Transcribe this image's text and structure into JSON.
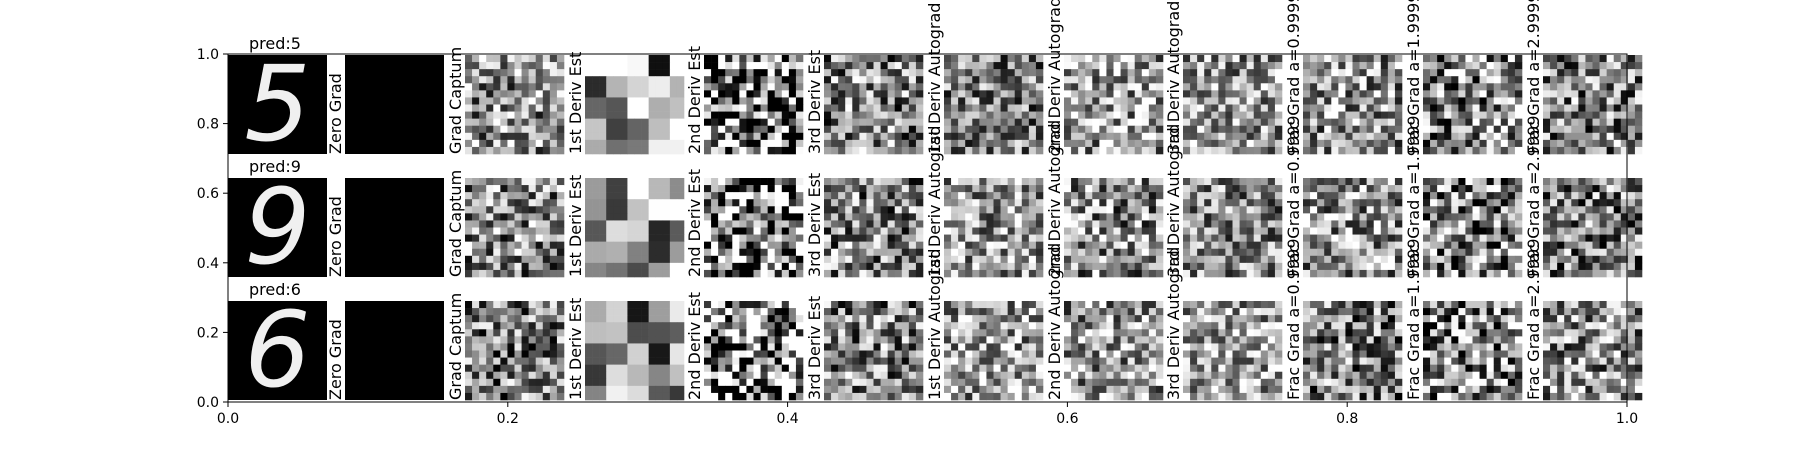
{
  "chart_data": {
    "type": "image-grid",
    "rows": [
      {
        "title": "pred:5",
        "digit": "5"
      },
      {
        "title": "pred:9",
        "digit": "9"
      },
      {
        "title": "pred:6",
        "digit": "6"
      }
    ],
    "columns": [
      {
        "label": "Zero Grad",
        "kind": "black"
      },
      {
        "label": "Grad Captum",
        "kind": "noise"
      },
      {
        "label": "1st Deriv Est",
        "kind": "noise"
      },
      {
        "label": "2nd Deriv Est",
        "kind": "noise"
      },
      {
        "label": "3rd Deriv Est",
        "kind": "noise"
      },
      {
        "label": "1st Deriv Autograd",
        "kind": "noise"
      },
      {
        "label": "2nd Deriv Autograd",
        "kind": "noise"
      },
      {
        "label": "3rd Deriv Autograd",
        "kind": "noise"
      },
      {
        "label": "Frac Grad a=0.9999",
        "kind": "noise"
      },
      {
        "label": "Frac Grad a=1.9999",
        "kind": "noise"
      },
      {
        "label": "Frac Grad a=2.9999",
        "kind": "noise"
      }
    ],
    "column_style": [
      {
        "block": 1,
        "contrast": 0.5
      },
      {
        "block": 1,
        "contrast": 0.5
      },
      {
        "block": 3,
        "contrast": 0.5
      },
      {
        "block": 1,
        "contrast": 0.9
      },
      {
        "block": 1,
        "contrast": 0.5
      },
      {
        "block": 1,
        "contrast": 0.45
      },
      {
        "block": 1,
        "contrast": 0.5
      },
      {
        "block": 1,
        "contrast": 0.45
      },
      {
        "block": 1,
        "contrast": 0.5
      },
      {
        "block": 1,
        "contrast": 0.6
      },
      {
        "block": 1,
        "contrast": 0.5
      }
    ],
    "x_axis": {
      "lim": [
        0.0,
        1.0
      ],
      "ticks": [
        0.0,
        0.2,
        0.4,
        0.6,
        0.8,
        1.0
      ],
      "tick_labels": [
        "0.0",
        "0.2",
        "0.4",
        "0.6",
        "0.8",
        "1.0"
      ]
    },
    "y_axis": {
      "lim": [
        0.0,
        1.0
      ],
      "ticks": [
        0.0,
        0.2,
        0.4,
        0.6,
        0.8,
        1.0
      ],
      "tick_labels": [
        "0.0",
        "0.2",
        "0.4",
        "0.6",
        "0.8",
        "1.0"
      ]
    },
    "colormap": "gray",
    "grid": false,
    "legend": "none"
  }
}
